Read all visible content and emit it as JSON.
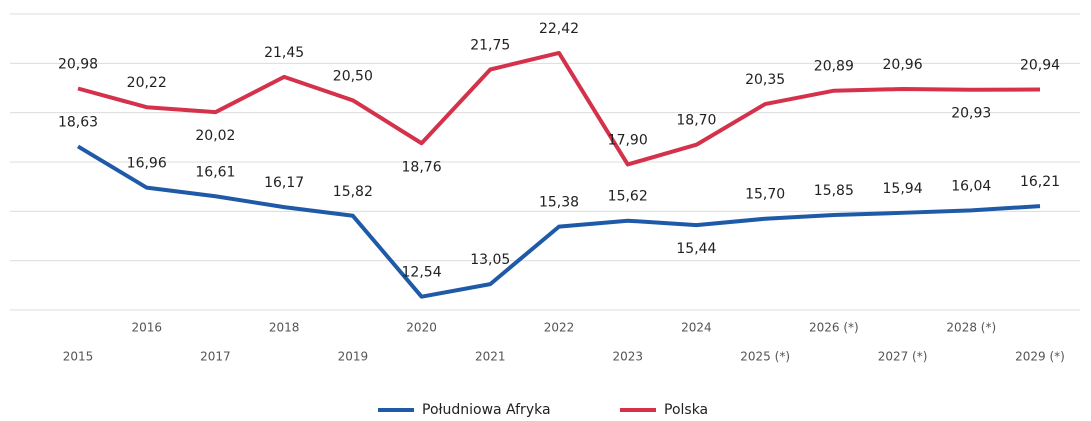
{
  "chart_data": {
    "type": "line",
    "categories": [
      "2015",
      "2016",
      "2017",
      "2018",
      "2019",
      "2020",
      "2021",
      "2022",
      "2023",
      "2024",
      "2025 (*)",
      "2026 (*)",
      "2027 (*)",
      "2028 (*)",
      "2029 (*)"
    ],
    "series": [
      {
        "name": "Południowa Afryka",
        "color": "#1f5aa8",
        "values": [
          18.63,
          16.96,
          16.61,
          16.17,
          15.82,
          12.54,
          13.05,
          15.38,
          15.62,
          15.44,
          15.7,
          15.85,
          15.94,
          16.04,
          16.21
        ],
        "value_labels": [
          "18,63",
          "16,96",
          "16,61",
          "16,17",
          "15,82",
          "12,54",
          "13,05",
          "15,38",
          "15,62",
          "15,44",
          "15,70",
          "15,85",
          "15,94",
          "16,04",
          "16,21"
        ]
      },
      {
        "name": "Polska",
        "color": "#d4314b",
        "values": [
          20.98,
          20.22,
          20.02,
          21.45,
          20.5,
          18.76,
          21.75,
          22.42,
          17.9,
          18.7,
          20.35,
          20.89,
          20.96,
          20.93,
          20.94
        ],
        "value_labels": [
          "20,98",
          "20,22",
          "20,02",
          "21,45",
          "20,50",
          "18,76",
          "21,75",
          "22,42",
          "17,90",
          "18,70",
          "20,35",
          "20,89",
          "20,96",
          "20,93",
          "20,94"
        ]
      }
    ],
    "ylim": [
      12,
      24
    ],
    "yticks": [
      12,
      14,
      16,
      18,
      20,
      22,
      24
    ],
    "grid": true,
    "legend": "bottom"
  }
}
